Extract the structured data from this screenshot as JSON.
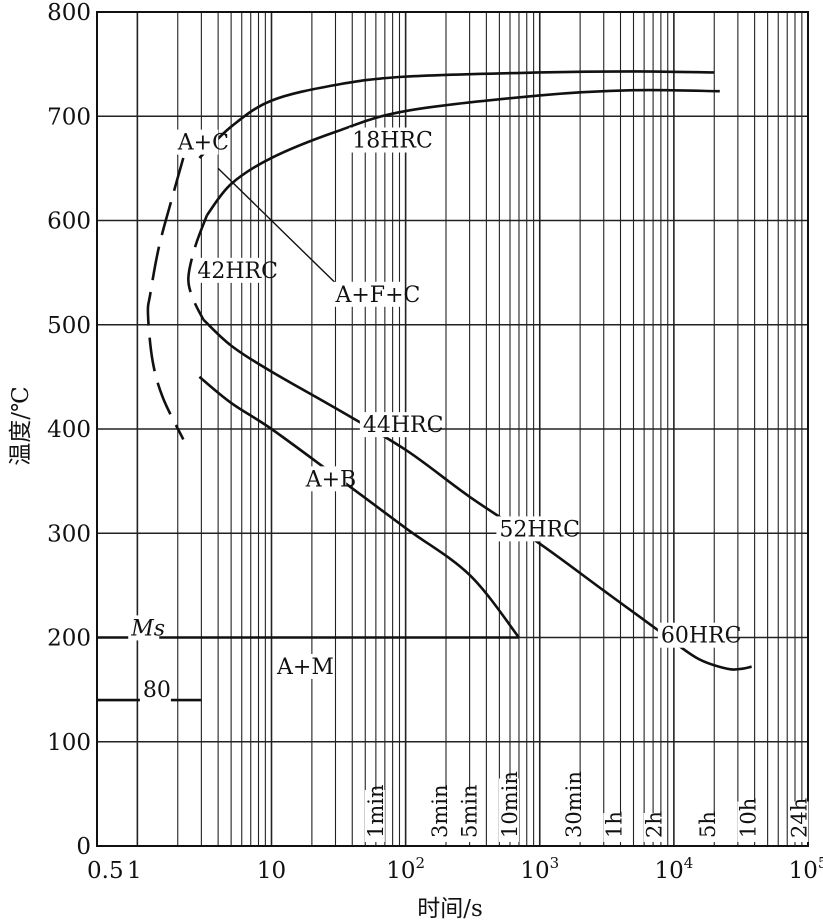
{
  "chart_data": {
    "type": "line",
    "title": "",
    "xlabel": "时间/s",
    "ylabel": "温度/℃",
    "x_scale": "log",
    "xlim": [
      0.5,
      100000
    ],
    "ylim": [
      0,
      800
    ],
    "grid": true,
    "yticks": [
      {
        "value": 0,
        "label": "0"
      },
      {
        "value": 100,
        "label": "100"
      },
      {
        "value": 200,
        "label": "200"
      },
      {
        "value": 300,
        "label": "300"
      },
      {
        "value": 400,
        "label": "400"
      },
      {
        "value": 500,
        "label": "500"
      },
      {
        "value": 600,
        "label": "600"
      },
      {
        "value": 700,
        "label": "700"
      },
      {
        "value": 800,
        "label": "800"
      }
    ],
    "xticks": [
      {
        "value": 0.5,
        "base": "0.5",
        "exp": ""
      },
      {
        "value": 1,
        "base": "1",
        "exp": ""
      },
      {
        "value": 10,
        "base": "10",
        "exp": ""
      },
      {
        "value": 100,
        "base": "10",
        "exp": "2"
      },
      {
        "value": 1000,
        "base": "10",
        "exp": "3"
      },
      {
        "value": 10000,
        "base": "10",
        "exp": "4"
      },
      {
        "value": 100000,
        "base": "10",
        "exp": "5"
      }
    ],
    "time_markers": [
      {
        "value": 60,
        "label": "1min"
      },
      {
        "value": 180,
        "label": "3min"
      },
      {
        "value": 300,
        "label": "5min"
      },
      {
        "value": 600,
        "label": "10min"
      },
      {
        "value": 1800,
        "label": "30min"
      },
      {
        "value": 3600,
        "label": "1h"
      },
      {
        "value": 7200,
        "label": "2h"
      },
      {
        "value": 18000,
        "label": "5h"
      },
      {
        "value": 36000,
        "label": "10h"
      },
      {
        "value": 86400,
        "label": "24h"
      }
    ],
    "series": [
      {
        "name": "transformation start (dashed)",
        "style": "dashed",
        "points": [
          [
            2.2,
            660
          ],
          [
            1.8,
            620
          ],
          [
            1.45,
            575
          ],
          [
            1.25,
            530
          ],
          [
            1.2,
            510
          ],
          [
            1.3,
            465
          ],
          [
            1.55,
            430
          ],
          [
            2.2,
            390
          ]
        ]
      },
      {
        "name": "transformation start (solid, upper)",
        "style": "solid",
        "points": [
          [
            2.9,
            660
          ],
          [
            5,
            690
          ],
          [
            10,
            715
          ],
          [
            30,
            730
          ],
          [
            100,
            738
          ],
          [
            1000,
            742
          ],
          [
            5000,
            743
          ],
          [
            20000,
            742
          ]
        ]
      },
      {
        "name": "transformation start (solid, lower)",
        "style": "solid",
        "points": [
          [
            2.9,
            450
          ],
          [
            5,
            425
          ],
          [
            10,
            400
          ],
          [
            30,
            355
          ],
          [
            100,
            305
          ],
          [
            300,
            260
          ],
          [
            700,
            200
          ]
        ]
      },
      {
        "name": "transformation finish (dashed)",
        "style": "dashed",
        "points": [
          [
            3.3,
            605
          ],
          [
            2.7,
            575
          ],
          [
            2.4,
            545
          ],
          [
            2.6,
            525
          ],
          [
            3.1,
            505
          ]
        ]
      },
      {
        "name": "transformation finish (solid, upper)",
        "style": "solid",
        "points": [
          [
            3.3,
            605
          ],
          [
            5,
            635
          ],
          [
            10,
            660
          ],
          [
            30,
            685
          ],
          [
            100,
            705
          ],
          [
            1000,
            720
          ],
          [
            5000,
            725
          ],
          [
            22000,
            724
          ]
        ]
      },
      {
        "name": "transformation finish (solid, lower)",
        "style": "solid",
        "points": [
          [
            3.1,
            505
          ],
          [
            5,
            480
          ],
          [
            10,
            455
          ],
          [
            30,
            420
          ],
          [
            100,
            380
          ],
          [
            300,
            335
          ],
          [
            1000,
            290
          ],
          [
            3000,
            245
          ],
          [
            8000,
            205
          ],
          [
            15000,
            180
          ],
          [
            25000,
            170
          ],
          [
            32000,
            170
          ],
          [
            38000,
            172
          ]
        ]
      },
      {
        "name": "Ms",
        "style": "solid",
        "points": [
          [
            0.5,
            200
          ],
          [
            700,
            200
          ]
        ]
      },
      {
        "name": "80",
        "style": "solid",
        "points": [
          [
            0.5,
            140
          ],
          [
            3,
            140
          ]
        ]
      }
    ],
    "leader_line": {
      "points": [
        [
          4,
          650
        ],
        [
          30,
          540
        ]
      ]
    },
    "annotations": [
      {
        "text": "A+C",
        "x": 2.0,
        "y": 668
      },
      {
        "text": "18HRC",
        "x": 40,
        "y": 670
      },
      {
        "text": "42HRC",
        "x": 2.8,
        "y": 545
      },
      {
        "text": "A+F+C",
        "x": 30,
        "y": 522
      },
      {
        "text": "44HRC",
        "x": 48,
        "y": 397
      },
      {
        "text": "A+B",
        "x": 18,
        "y": 345
      },
      {
        "text": "52HRC",
        "x": 500,
        "y": 297
      },
      {
        "text": "60HRC",
        "x": 8000,
        "y": 195
      },
      {
        "text": "Ms",
        "x": 0.9,
        "y": 202,
        "italic": true
      },
      {
        "text": "A+M",
        "x": 11,
        "y": 165
      },
      {
        "text": "80",
        "x": 1.1,
        "y": 143
      }
    ]
  }
}
